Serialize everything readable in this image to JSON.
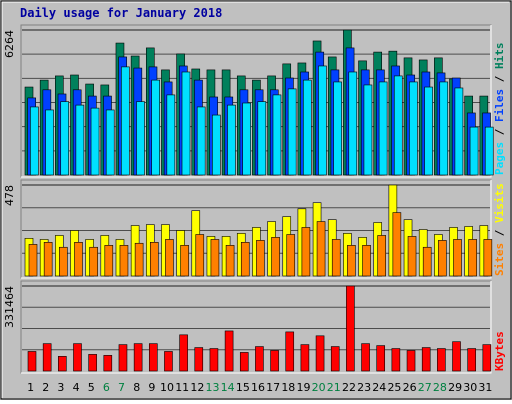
{
  "chart_data": [
    {
      "type": "bar",
      "title": "Daily usage for January 2018",
      "ylim": [
        0,
        6264
      ],
      "yticks": [
        6264
      ],
      "grid_divisions": 6,
      "legend_separator": " / ",
      "series": [
        {
          "name": "Pages",
          "color": "#00e0ff",
          "values": [
            2940,
            2810,
            3170,
            3020,
            2890,
            2810,
            4670,
            3170,
            4100,
            3460,
            4450,
            2940,
            2590,
            3020,
            3110,
            3170,
            3460,
            3720,
            4100,
            4710,
            4020,
            4450,
            3890,
            4020,
            4280,
            4020,
            3800,
            4020,
            3760,
            2070,
            2070
          ]
        },
        {
          "name": "Files",
          "color": "#0040ff",
          "values": [
            3330,
            3680,
            3500,
            3680,
            3410,
            3410,
            5100,
            4620,
            4670,
            4020,
            4710,
            4100,
            3370,
            3370,
            3680,
            3680,
            3680,
            4190,
            4450,
            5310,
            4540,
            5490,
            4540,
            4540,
            4710,
            4320,
            4450,
            4410,
            4190,
            2680,
            2680
          ]
        },
        {
          "name": "Hits",
          "color": "#00805c",
          "values": [
            3800,
            4100,
            4280,
            4320,
            3930,
            3890,
            5700,
            5140,
            5490,
            4540,
            5230,
            4580,
            4540,
            4540,
            4280,
            4100,
            4280,
            4800,
            4840,
            5790,
            5100,
            6264,
            4930,
            5310,
            5350,
            5060,
            4970,
            5060,
            4150,
            3410,
            3410
          ]
        }
      ]
    },
    {
      "type": "bar",
      "ylim": [
        0,
        478
      ],
      "yticks": [
        478
      ],
      "grid_divisions": 4,
      "legend_separator": " / ",
      "series": [
        {
          "name": "Sites",
          "color": "#ff8000",
          "values": [
            166,
            177,
            151,
            177,
            151,
            161,
            161,
            172,
            177,
            192,
            161,
            218,
            192,
            161,
            177,
            187,
            203,
            218,
            255,
            286,
            192,
            161,
            161,
            213,
            333,
            208,
            151,
            187,
            192,
            192,
            192
          ]
        },
        {
          "name": "Visits",
          "color": "#ffff00",
          "values": [
            198,
            192,
            213,
            239,
            192,
            213,
            192,
            265,
            270,
            270,
            239,
            343,
            208,
            208,
            224,
            255,
            286,
            312,
            353,
            385,
            296,
            224,
            203,
            281,
            478,
            296,
            244,
            218,
            255,
            260,
            265
          ]
        }
      ]
    },
    {
      "type": "bar",
      "ylim": [
        0,
        331464
      ],
      "yticks": [
        331464
      ],
      "grid_divisions": 4,
      "categories": [
        "1",
        "2",
        "3",
        "4",
        "5",
        "6",
        "7",
        "8",
        "9",
        "10",
        "11",
        "12",
        "13",
        "14",
        "15",
        "16",
        "17",
        "18",
        "19",
        "20",
        "21",
        "22",
        "23",
        "24",
        "25",
        "26",
        "27",
        "28",
        "29",
        "30",
        "31"
      ],
      "highlight_indices": [
        5,
        6,
        12,
        13,
        19,
        20,
        26,
        27
      ],
      "highlight_color": "#008040",
      "series": [
        {
          "name": "KBytes",
          "color": "#ff0000",
          "values": [
            76200,
            106700,
            57200,
            106700,
            64800,
            61000,
            102900,
            106700,
            106700,
            76200,
            141000,
            91400,
            87600,
            156200,
            72400,
            95300,
            80000,
            152400,
            102900,
            137200,
            95300,
            331464,
            106700,
            99100,
            87600,
            80000,
            91400,
            87600,
            114300,
            87600,
            102900
          ]
        }
      ]
    }
  ]
}
